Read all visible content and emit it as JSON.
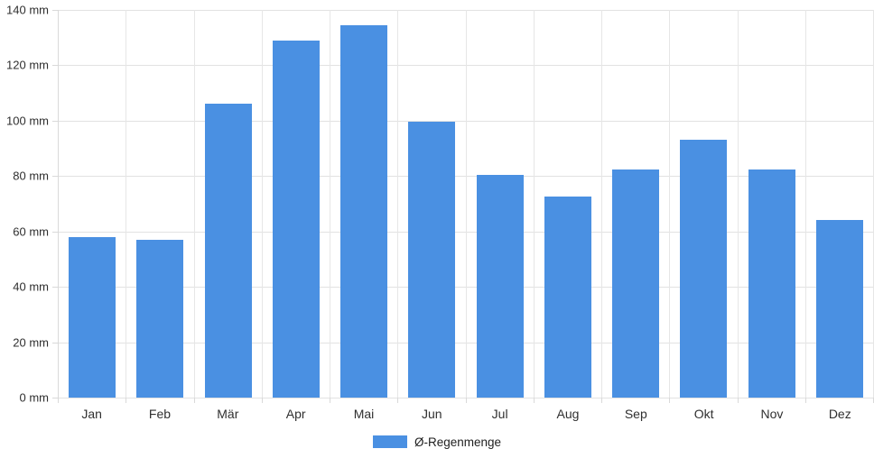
{
  "chart_data": {
    "type": "bar",
    "title": "",
    "categories": [
      "Jan",
      "Feb",
      "Mär",
      "Apr",
      "Mai",
      "Jun",
      "Jul",
      "Aug",
      "Sep",
      "Okt",
      "Nov",
      "Dez"
    ],
    "series": [
      {
        "name": "Ø-Regenmenge",
        "values": [
          58,
          57,
          106,
          129,
          134.5,
          99.5,
          80.5,
          72.5,
          82.5,
          93,
          82.5,
          64
        ]
      }
    ],
    "unit": "mm",
    "ylim": [
      0,
      140
    ],
    "ytick_step": 20,
    "ytick_labels": [
      "0 mm",
      "20 mm",
      "40 mm",
      "60 mm",
      "80 mm",
      "100 mm",
      "120 mm",
      "140 mm"
    ],
    "xlabel": "",
    "ylabel": "",
    "grid": true,
    "legend_position": "bottom"
  },
  "legend": {
    "label": "Ø-Regenmenge"
  },
  "colors": {
    "bar": "#4a90e2",
    "grid": "#e2e2e2",
    "axis": "#d9d9d9",
    "text": "#2f2f2f"
  }
}
